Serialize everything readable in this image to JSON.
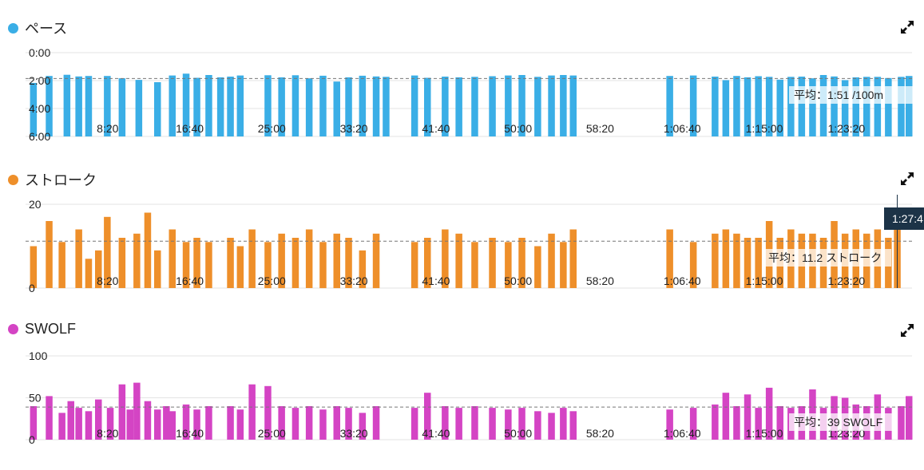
{
  "colors": {
    "pace": "#3aaee6",
    "stroke": "#ee8f2a",
    "swolf": "#d444c4",
    "grid": "#e3e3e3",
    "avg": "#777777",
    "cursor_bg": "#1c3347"
  },
  "x_ticks": [
    "8:20",
    "16:40",
    "25:00",
    "33:20",
    "41:40",
    "50:00",
    "58:20",
    "1:06:40",
    "1:15:00",
    "1:23:20"
  ],
  "x_range_min": [
    0,
    90
  ],
  "icons": {
    "expand": "expand-icon"
  },
  "cursor": {
    "label": "1:27:4",
    "time_min": 88.5
  },
  "chart_data": [
    {
      "type": "bar",
      "title": "ペース",
      "unit": "min:sec /100m (inverted axis)",
      "y_ticks": [
        "0:00",
        "2:00",
        "4:00",
        "6:00"
      ],
      "ylim_sec": [
        0,
        360
      ],
      "inverted": true,
      "average": {
        "value_sec": 111,
        "label": "平均：1:51 /100m"
      },
      "x": [
        0.8,
        2.4,
        4.2,
        5.4,
        6.4,
        8.3,
        9.8,
        11.5,
        13.4,
        14.9,
        16.3,
        17.4,
        18.6,
        19.8,
        20.8,
        21.8,
        24.6,
        26.0,
        27.4,
        28.8,
        30.2,
        31.6,
        32.8,
        34.2,
        35.6,
        36.6,
        39.5,
        40.8,
        42.6,
        44.0,
        45.6,
        47.4,
        49.0,
        50.4,
        52.0,
        53.4,
        54.6,
        55.6,
        65.4,
        67.8,
        70.0,
        71.1,
        72.2,
        73.3,
        74.4,
        75.5,
        76.6,
        77.7,
        78.8,
        79.9,
        81.0,
        82.1,
        83.2,
        84.3,
        85.4,
        86.5,
        87.6,
        88.9,
        89.7
      ],
      "values": [
        130,
        100,
        95,
        102,
        100,
        100,
        110,
        117,
        127,
        98,
        90,
        108,
        96,
        106,
        103,
        98,
        97,
        106,
        97,
        110,
        99,
        124,
        106,
        99,
        102,
        104,
        98,
        108,
        103,
        106,
        104,
        101,
        98,
        96,
        104,
        98,
        96,
        98,
        100,
        98,
        103,
        118,
        100,
        106,
        101,
        104,
        116,
        104,
        103,
        110,
        96,
        102,
        118,
        106,
        104,
        104,
        109,
        104,
        100
      ],
      "legend_color": "#3aaee6"
    },
    {
      "type": "bar",
      "title": "ストローク",
      "y_ticks": [
        "20",
        "0"
      ],
      "ylim": [
        0,
        20
      ],
      "average": {
        "value": 11.2,
        "label": "平均：11.2 ストローク"
      },
      "x": [
        0.8,
        2.4,
        3.7,
        5.4,
        6.4,
        7.4,
        8.3,
        9.8,
        11.3,
        12.4,
        13.4,
        14.9,
        16.3,
        17.4,
        18.6,
        20.8,
        21.8,
        23.0,
        24.6,
        26.0,
        27.4,
        28.8,
        30.2,
        31.6,
        32.8,
        34.2,
        35.6,
        39.5,
        40.8,
        42.6,
        44.0,
        45.6,
        47.4,
        49.0,
        50.4,
        52.0,
        53.4,
        54.6,
        55.6,
        65.4,
        67.8,
        70.0,
        71.1,
        72.2,
        73.3,
        74.4,
        75.5,
        76.6,
        77.7,
        78.8,
        79.9,
        81.0,
        82.1,
        83.2,
        84.3,
        85.4,
        86.5,
        87.6,
        88.5
      ],
      "values": [
        10,
        16,
        11,
        14,
        7,
        9,
        17,
        12,
        13,
        18,
        9,
        14,
        11,
        12,
        11,
        12,
        10,
        14,
        11,
        13,
        12,
        14,
        11,
        13,
        12,
        9,
        13,
        11,
        12,
        14,
        13,
        11,
        12,
        11,
        12,
        10,
        13,
        11,
        14,
        14,
        11,
        13,
        14,
        13,
        12,
        12,
        16,
        12,
        14,
        13,
        13,
        12,
        16,
        13,
        14,
        13,
        14,
        12,
        14
      ],
      "legend_color": "#ee8f2a"
    },
    {
      "type": "bar",
      "title": "SWOLF",
      "y_ticks": [
        "100",
        "50",
        "0"
      ],
      "ylim": [
        0,
        100
      ],
      "average": {
        "value": 39,
        "label": "平均：39 SWOLF"
      },
      "x": [
        0.8,
        2.4,
        3.7,
        4.6,
        5.4,
        6.4,
        7.4,
        8.6,
        9.8,
        10.6,
        11.3,
        12.4,
        13.4,
        14.3,
        14.9,
        16.3,
        17.4,
        18.6,
        20.8,
        21.8,
        23.0,
        24.6,
        26.0,
        27.4,
        28.8,
        30.2,
        31.6,
        32.8,
        34.2,
        35.6,
        39.5,
        40.8,
        42.6,
        44.0,
        45.6,
        47.4,
        49.0,
        50.4,
        52.0,
        53.4,
        54.6,
        55.6,
        65.4,
        67.8,
        70.0,
        71.1,
        72.2,
        73.3,
        74.4,
        75.5,
        76.6,
        77.7,
        78.8,
        79.9,
        81.0,
        82.1,
        83.2,
        84.3,
        85.4,
        86.5,
        87.6,
        88.9,
        89.7
      ],
      "values": [
        40,
        52,
        32,
        46,
        38,
        34,
        48,
        38,
        66,
        36,
        68,
        46,
        36,
        40,
        34,
        42,
        36,
        40,
        40,
        36,
        66,
        64,
        40,
        38,
        40,
        36,
        40,
        38,
        32,
        40,
        38,
        56,
        40,
        38,
        40,
        38,
        36,
        38,
        34,
        32,
        38,
        34,
        36,
        38,
        42,
        56,
        40,
        54,
        38,
        62,
        40,
        38,
        40,
        60,
        38,
        52,
        50,
        42,
        40,
        54,
        38,
        40,
        52
      ],
      "legend_color": "#d444c4"
    }
  ]
}
